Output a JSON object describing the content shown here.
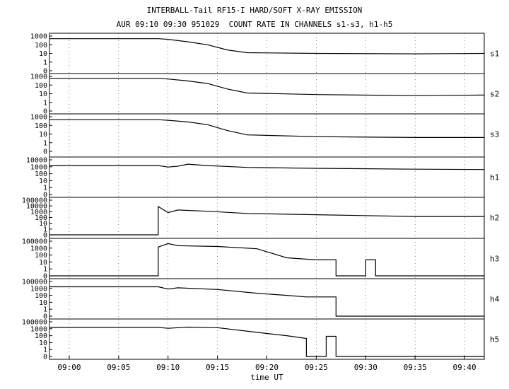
{
  "title": "INTERBALL-Tail RF15-I HARD/SOFT X-RAY EMISSION",
  "subtitle": "AUR 09:10 09:30 951029  COUNT RATE IN CHANNELS s1-s3, h1-h5",
  "chart_data": {
    "type": "line",
    "xlabel": "time UT",
    "x_ticks": [
      "09:00",
      "09:05",
      "09:10",
      "09:15",
      "09:20",
      "09:25",
      "09:30",
      "09:35",
      "09:40"
    ],
    "x_range": [
      "08:58",
      "09:42"
    ],
    "y_scale": "log",
    "panels": [
      {
        "name": "s1",
        "ticks": [
          "1000",
          "100",
          "10",
          "1",
          "0"
        ],
        "series": [
          [
            "08:58",
            500
          ],
          [
            "09:09",
            500
          ],
          [
            "09:10",
            420
          ],
          [
            "09:12",
            220
          ],
          [
            "09:14",
            100
          ],
          [
            "09:16",
            25
          ],
          [
            "09:18",
            12
          ],
          [
            "09:25",
            10
          ],
          [
            "09:35",
            9
          ],
          [
            "09:42",
            10
          ]
        ]
      },
      {
        "name": "s2",
        "ticks": [
          "1000",
          "100",
          "10",
          "1",
          "0"
        ],
        "series": [
          [
            "08:58",
            600
          ],
          [
            "09:09",
            600
          ],
          [
            "09:10",
            500
          ],
          [
            "09:12",
            300
          ],
          [
            "09:14",
            150
          ],
          [
            "09:16",
            35
          ],
          [
            "09:18",
            12
          ],
          [
            "09:25",
            8
          ],
          [
            "09:35",
            6
          ],
          [
            "09:42",
            7
          ]
        ]
      },
      {
        "name": "s3",
        "ticks": [
          "1000",
          "100",
          "10",
          "1",
          "0"
        ],
        "series": [
          [
            "08:58",
            450
          ],
          [
            "09:09",
            450
          ],
          [
            "09:10",
            380
          ],
          [
            "09:12",
            250
          ],
          [
            "09:14",
            120
          ],
          [
            "09:16",
            25
          ],
          [
            "09:18",
            8
          ],
          [
            "09:25",
            5
          ],
          [
            "09:35",
            4
          ],
          [
            "09:42",
            4
          ]
        ]
      },
      {
        "name": "h1",
        "ticks": [
          "10000",
          "1000",
          "100",
          "10",
          "1",
          "0"
        ],
        "series": [
          [
            "08:58",
            1500
          ],
          [
            "09:09",
            1500
          ],
          [
            "09:10",
            900
          ],
          [
            "09:11",
            1200
          ],
          [
            "09:12",
            2400
          ],
          [
            "09:14",
            1500
          ],
          [
            "09:18",
            800
          ],
          [
            "09:25",
            600
          ],
          [
            "09:35",
            450
          ],
          [
            "09:42",
            400
          ]
        ]
      },
      {
        "name": "h2",
        "ticks": [
          "100000",
          "10000",
          "1000",
          "100",
          "10",
          "1",
          "0"
        ],
        "series": [
          [
            "08:58",
            0
          ],
          [
            "09:09",
            0
          ],
          [
            "09:09",
            8000
          ],
          [
            "09:10",
            700
          ],
          [
            "09:11",
            2000
          ],
          [
            "09:14",
            1200
          ],
          [
            "09:18",
            500
          ],
          [
            "09:25",
            300
          ],
          [
            "09:35",
            150
          ],
          [
            "09:42",
            150
          ]
        ]
      },
      {
        "name": "h3",
        "ticks": [
          "100000",
          "1000",
          "100",
          "10",
          "1",
          "0"
        ],
        "series": [
          [
            "08:58",
            0
          ],
          [
            "09:09",
            0
          ],
          [
            "09:09",
            2000
          ],
          [
            "09:10",
            20000
          ],
          [
            "09:11",
            5000
          ],
          [
            "09:15",
            3000
          ],
          [
            "09:19",
            800
          ],
          [
            "09:22",
            40
          ],
          [
            "09:25",
            20
          ],
          [
            "09:27",
            20
          ],
          [
            "09:27",
            0
          ],
          [
            "09:30",
            0
          ],
          [
            "09:30",
            20
          ],
          [
            "09:31",
            20
          ],
          [
            "09:31",
            0
          ],
          [
            "09:42",
            0
          ]
        ]
      },
      {
        "name": "h4",
        "ticks": [
          "100000",
          "1000",
          "100",
          "10",
          "1",
          "0"
        ],
        "series": [
          [
            "08:58",
            3000
          ],
          [
            "09:09",
            3000
          ],
          [
            "09:10",
            800
          ],
          [
            "09:11",
            1500
          ],
          [
            "09:15",
            700
          ],
          [
            "09:19",
            200
          ],
          [
            "09:22",
            100
          ],
          [
            "09:24",
            60
          ],
          [
            "09:27",
            60
          ],
          [
            "09:27",
            0
          ],
          [
            "09:42",
            0
          ]
        ]
      },
      {
        "name": "h5",
        "ticks": [
          "100000",
          "1000",
          "100",
          "10",
          "1",
          "0"
        ],
        "series": [
          [
            "08:58",
            2500
          ],
          [
            "09:09",
            2500
          ],
          [
            "09:10",
            1300
          ],
          [
            "09:12",
            3000
          ],
          [
            "09:15",
            2000
          ],
          [
            "09:19",
            300
          ],
          [
            "09:22",
            100
          ],
          [
            "09:24",
            40
          ],
          [
            "09:24",
            0
          ],
          [
            "09:26",
            0
          ],
          [
            "09:26",
            80
          ],
          [
            "09:27",
            80
          ],
          [
            "09:27",
            0
          ],
          [
            "09:42",
            0
          ]
        ]
      }
    ]
  }
}
